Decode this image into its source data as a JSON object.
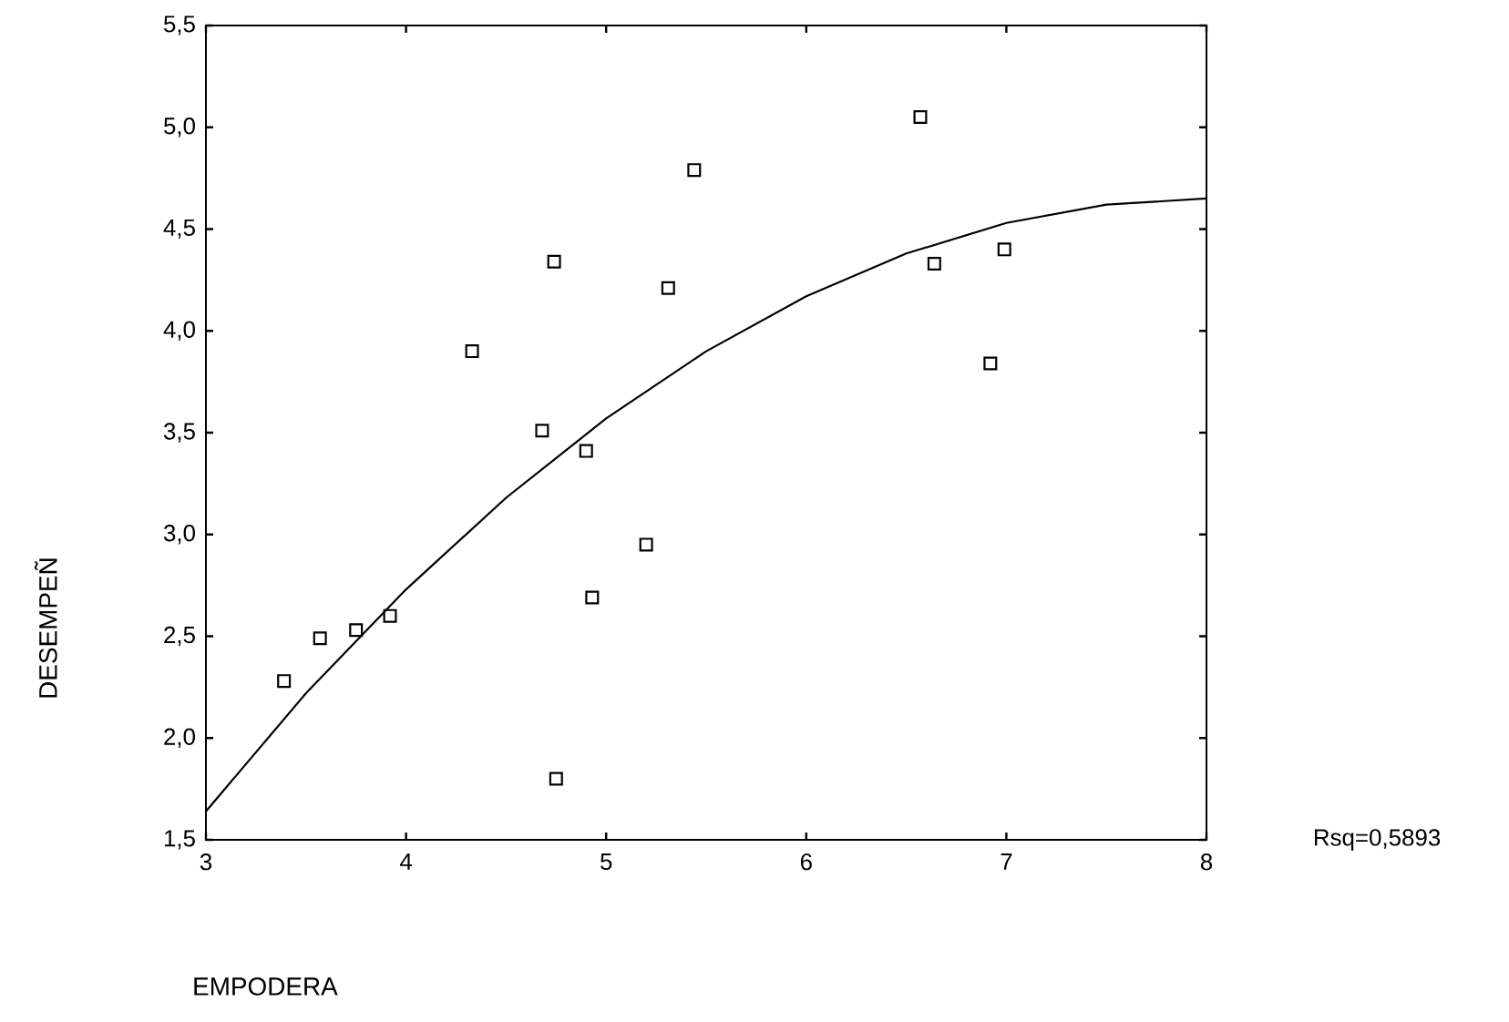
{
  "chart_data": {
    "type": "scatter",
    "xlabel": "EMPODERA",
    "ylabel": "DESEMPEÑ",
    "xlim": [
      3,
      8
    ],
    "ylim": [
      1.5,
      5.5
    ],
    "xticks": [
      3,
      4,
      5,
      6,
      7,
      8
    ],
    "yticks": [
      {
        "value": 1.5,
        "label": "1,5"
      },
      {
        "value": 2,
        "label": "2,0"
      },
      {
        "value": 2.5,
        "label": "2,5"
      },
      {
        "value": 3,
        "label": "3,0"
      },
      {
        "value": 3.5,
        "label": "3,5"
      },
      {
        "value": 4,
        "label": "4,0"
      },
      {
        "value": 4.5,
        "label": "4,5"
      },
      {
        "value": 5,
        "label": "5,0"
      },
      {
        "value": 5.5,
        "label": "5,5"
      }
    ],
    "grid": false,
    "annotations": [
      "Rsq=0,5893"
    ],
    "series": [
      {
        "color": "#000000",
        "marker": "square",
        "x": [
          3.39,
          3.57,
          3.75,
          3.92,
          4.33,
          4.68,
          4.74,
          4.75,
          4.9,
          4.93,
          5.2,
          5.31,
          5.44,
          6.57,
          6.64,
          6.92,
          6.99
        ],
        "values": [
          2.28,
          2.49,
          2.53,
          2.6,
          3.9,
          3.51,
          4.34,
          1.8,
          3.41,
          2.69,
          2.95,
          4.21,
          4.79,
          5.05,
          4.33,
          3.84,
          4.4
        ]
      },
      {
        "type": "line",
        "color": "#000000",
        "marker": "none",
        "line_style": "solid",
        "x": [
          3,
          3.5,
          4,
          4.5,
          5,
          5.5,
          6,
          6.5,
          7,
          7.5,
          8
        ],
        "values": [
          1.64,
          2.22,
          2.73,
          3.18,
          3.57,
          3.9,
          4.17,
          4.38,
          4.53,
          4.62,
          4.65
        ]
      }
    ]
  }
}
